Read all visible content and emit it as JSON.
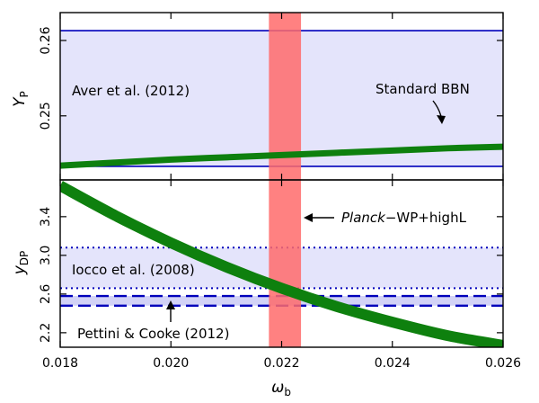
{
  "chart_data": {
    "type": "line",
    "xlabel": "ω",
    "xlabel_sub": "b",
    "xlim": [
      0.018,
      0.026
    ],
    "xticks": [
      0.018,
      0.02,
      0.022,
      0.024,
      0.026
    ],
    "xtick_labels": [
      "0.018",
      "0.020",
      "0.022",
      "0.024",
      "0.026"
    ],
    "planck_band": {
      "label_italic": "Planck",
      "label_rest": "−WP+highL",
      "xmin": 0.02177,
      "xmax": 0.02235,
      "color": "#ff6b6b"
    },
    "panels": [
      {
        "name": "helium",
        "ylabel": "Y",
        "ylabel_sub": "P",
        "ylim": [
          0.2415,
          0.2637
        ],
        "yticks": [
          0.25,
          0.26
        ],
        "ytick_labels": [
          "0.25",
          "0.26"
        ],
        "obs_band": {
          "label": "Aver et al. (2012)",
          "ymin": 0.2433,
          "ymax": 0.2613,
          "color": "#e4e4fb",
          "line_color": "#0000bb",
          "line_style": "solid"
        },
        "bbn_curve": {
          "label": "Standard BBN",
          "color": "#0e800e",
          "x": [
            0.018,
            0.019,
            0.02,
            0.021,
            0.022,
            0.023,
            0.024,
            0.025,
            0.026
          ],
          "y": [
            0.2434,
            0.2438,
            0.2442,
            0.2445,
            0.2448,
            0.2451,
            0.2454,
            0.2457,
            0.2459
          ]
        }
      },
      {
        "name": "deuterium",
        "ylabel": "y",
        "ylabel_sub": "DP",
        "ylim": [
          2.05,
          3.78
        ],
        "yticks": [
          2.2,
          2.6,
          3.0,
          3.4
        ],
        "ytick_labels": [
          "2.2",
          "2.6",
          "3.0",
          "3.4"
        ],
        "bands": [
          {
            "label": "Iocco et al. (2008)",
            "ymin": 2.66,
            "ymax": 3.08,
            "color": "#e4e4fb",
            "line_color": "#0000bb",
            "line_style": "dotted"
          },
          {
            "label": "Pettini & Cooke (2012)",
            "ymin": 2.48,
            "ymax": 2.58,
            "color": "#d2d2f6",
            "line_color": "#0000bb",
            "line_style": "dashed"
          }
        ],
        "bbn_curve": {
          "color": "#0e800e",
          "x": [
            0.018,
            0.019,
            0.02,
            0.021,
            0.022,
            0.023,
            0.024,
            0.025,
            0.026
          ],
          "y": [
            3.72,
            3.41,
            3.13,
            2.88,
            2.66,
            2.47,
            2.31,
            2.17,
            2.07
          ]
        }
      }
    ]
  }
}
